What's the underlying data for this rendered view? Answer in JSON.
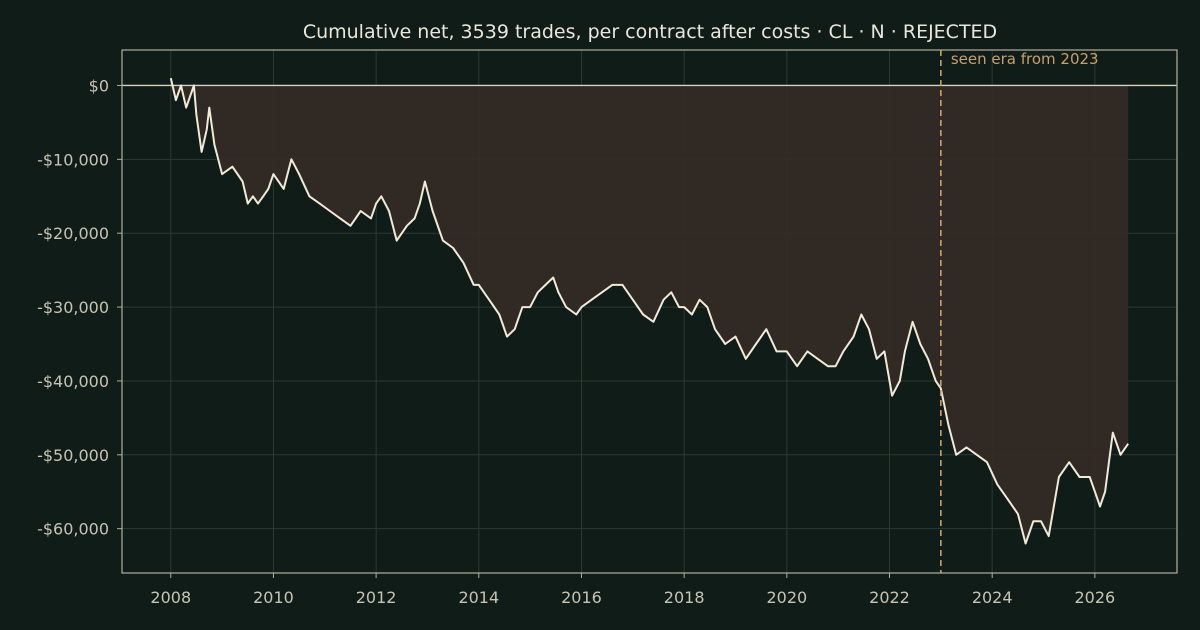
{
  "chart_data": {
    "type": "area",
    "title": "Cumulative net, 3539 trades, per contract after costs  ·  CL · N · REJECTED",
    "xlabel": "",
    "ylabel": "",
    "xlim": [
      2007.05,
      2027.6
    ],
    "ylim": [
      -66000,
      4800
    ],
    "grid": true,
    "x_ticks": [
      2008,
      2010,
      2012,
      2014,
      2016,
      2018,
      2020,
      2022,
      2024,
      2026
    ],
    "x_tick_labels": [
      "2008",
      "2010",
      "2012",
      "2014",
      "2016",
      "2018",
      "2020",
      "2022",
      "2024",
      "2026"
    ],
    "y_ticks": [
      0,
      -10000,
      -20000,
      -30000,
      -40000,
      -50000,
      -60000
    ],
    "y_tick_labels": [
      "$0",
      "-$10,000",
      "-$20,000",
      "-$30,000",
      "-$40,000",
      "-$50,000",
      "-$60,000"
    ],
    "reference_line_y": 0,
    "vline": {
      "x": 2023.0,
      "label": "seen era from 2023"
    },
    "series": [
      {
        "x": [
          2008.0,
          2008.1,
          2008.2,
          2008.3,
          2008.45,
          2008.5,
          2008.6,
          2008.7,
          2008.75,
          2008.85,
          2009.0,
          2009.2,
          2009.4,
          2009.5,
          2009.6,
          2009.7,
          2009.8,
          2009.9,
          2010.0,
          2010.2,
          2010.35,
          2010.5,
          2010.7,
          2010.9,
          2011.1,
          2011.3,
          2011.5,
          2011.7,
          2011.9,
          2012.0,
          2012.1,
          2012.25,
          2012.4,
          2012.6,
          2012.75,
          2012.85,
          2012.95,
          2013.1,
          2013.3,
          2013.5,
          2013.7,
          2013.9,
          2014.0,
          2014.2,
          2014.4,
          2014.55,
          2014.7,
          2014.85,
          2015.0,
          2015.15,
          2015.3,
          2015.45,
          2015.55,
          2015.7,
          2015.9,
          2016.0,
          2016.2,
          2016.4,
          2016.6,
          2016.8,
          2017.0,
          2017.2,
          2017.4,
          2017.6,
          2017.75,
          2017.9,
          2018.0,
          2018.15,
          2018.3,
          2018.45,
          2018.6,
          2018.8,
          2019.0,
          2019.2,
          2019.4,
          2019.6,
          2019.8,
          2020.0,
          2020.2,
          2020.4,
          2020.6,
          2020.8,
          2020.95,
          2021.1,
          2021.3,
          2021.45,
          2021.6,
          2021.75,
          2021.9,
          2022.05,
          2022.2,
          2022.3,
          2022.45,
          2022.6,
          2022.75,
          2022.9,
          2023.0,
          2023.15,
          2023.3,
          2023.5,
          2023.7,
          2023.9,
          2024.1,
          2024.3,
          2024.5,
          2024.65,
          2024.8,
          2024.95,
          2025.1,
          2025.3,
          2025.5,
          2025.7,
          2025.9,
          2026.0,
          2026.1,
          2026.2,
          2026.35,
          2026.5,
          2026.65
        ],
        "y": [
          1000,
          -2000,
          0,
          -3000,
          0,
          -4000,
          -9000,
          -6000,
          -3000,
          -8000,
          -12000,
          -11000,
          -13000,
          -16000,
          -15000,
          -16000,
          -15000,
          -14000,
          -12000,
          -14000,
          -10000,
          -12000,
          -15000,
          -16000,
          -17000,
          -18000,
          -19000,
          -17000,
          -18000,
          -16000,
          -15000,
          -17000,
          -21000,
          -19000,
          -18000,
          -16000,
          -13000,
          -17000,
          -21000,
          -22000,
          -24000,
          -27000,
          -27000,
          -29000,
          -31000,
          -34000,
          -33000,
          -30000,
          -30000,
          -28000,
          -27000,
          -26000,
          -28000,
          -30000,
          -31000,
          -30000,
          -29000,
          -28000,
          -27000,
          -27000,
          -29000,
          -31000,
          -32000,
          -29000,
          -28000,
          -30000,
          -30000,
          -31000,
          -29000,
          -30000,
          -33000,
          -35000,
          -34000,
          -37000,
          -35000,
          -33000,
          -36000,
          -36000,
          -38000,
          -36000,
          -37000,
          -38000,
          -38000,
          -36000,
          -34000,
          -31000,
          -33000,
          -37000,
          -36000,
          -42000,
          -40000,
          -36000,
          -32000,
          -35000,
          -37000,
          -40000,
          -41000,
          -46000,
          -50000,
          -49000,
          -50000,
          -51000,
          -54000,
          -56000,
          -58000,
          -62000,
          -59000,
          -59000,
          -61000,
          -53000,
          -51000,
          -53000,
          -53000,
          -55000,
          -57000,
          -55000,
          -47000,
          -50000,
          -48500
        ]
      }
    ]
  }
}
